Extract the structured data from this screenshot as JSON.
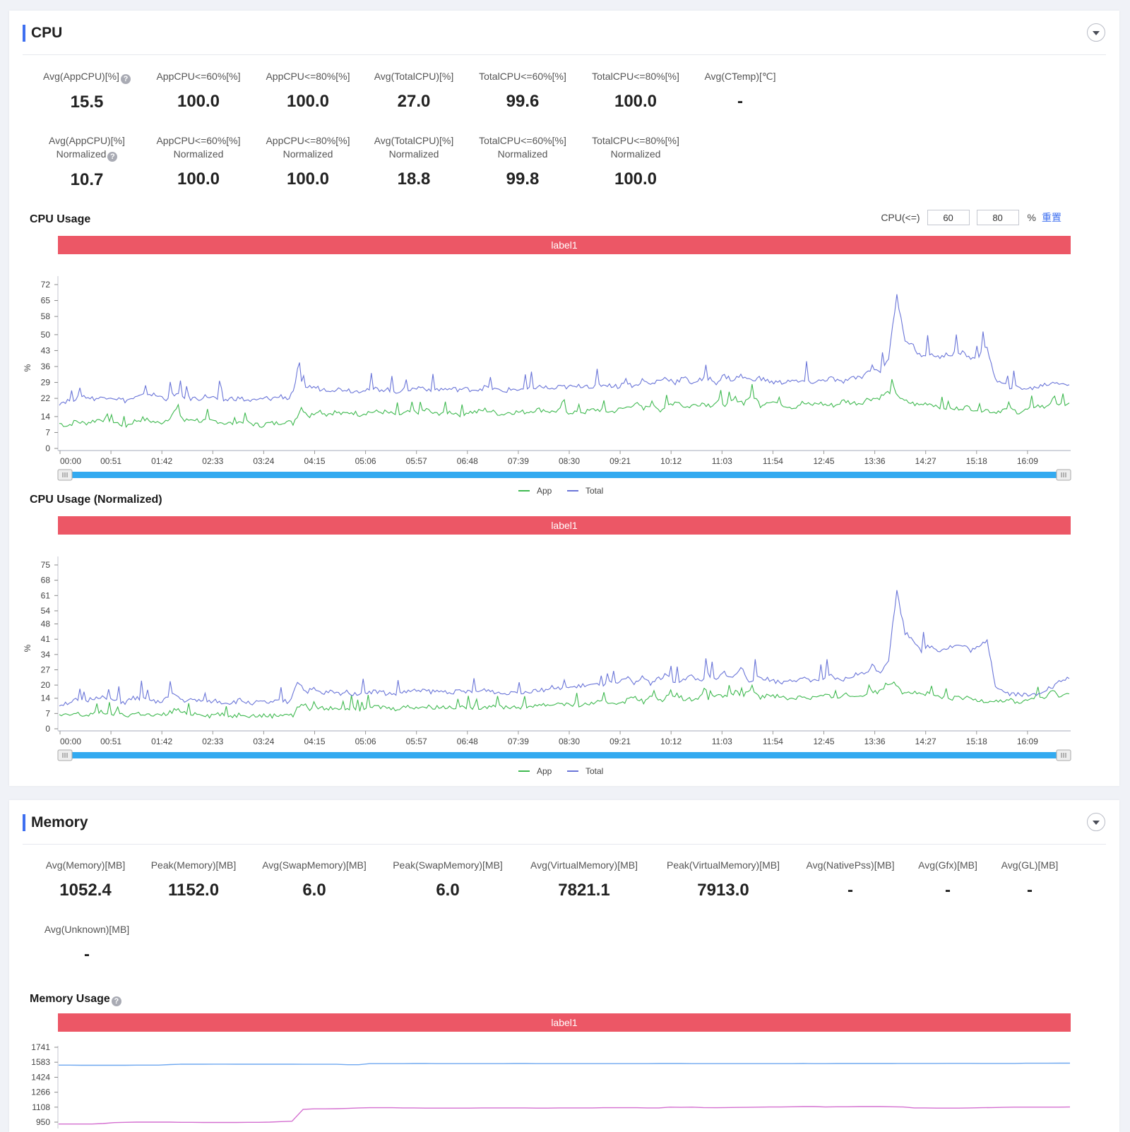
{
  "cpu": {
    "title": "CPU",
    "metrics_row1": [
      {
        "label": "Avg(AppCPU)[%]",
        "value": "15.5",
        "help": true
      },
      {
        "label": "AppCPU<=60%[%]",
        "value": "100.0"
      },
      {
        "label": "AppCPU<=80%[%]",
        "value": "100.0"
      },
      {
        "label": "Avg(TotalCPU)[%]",
        "value": "27.0"
      },
      {
        "label": "TotalCPU<=60%[%]",
        "value": "99.6"
      },
      {
        "label": "TotalCPU<=80%[%]",
        "value": "100.0"
      },
      {
        "label": "Avg(CTemp)[℃]",
        "value": "-"
      }
    ],
    "metrics_row2": [
      {
        "label": "Avg(AppCPU)[%]",
        "sub": "Normalized",
        "value": "10.7",
        "help": true
      },
      {
        "label": "AppCPU<=60%[%]",
        "sub": "Normalized",
        "value": "100.0"
      },
      {
        "label": "AppCPU<=80%[%]",
        "sub": "Normalized",
        "value": "100.0"
      },
      {
        "label": "Avg(TotalCPU)[%]",
        "sub": "Normalized",
        "value": "18.8"
      },
      {
        "label": "TotalCPU<=60%[%]",
        "sub": "Normalized",
        "value": "99.8"
      },
      {
        "label": "TotalCPU<=80%[%]",
        "sub": "Normalized",
        "value": "100.0"
      }
    ],
    "threshold": {
      "label": "CPU(<=)",
      "low": "60",
      "high": "80",
      "unit": "%",
      "reset": "重置"
    }
  },
  "memory": {
    "title": "Memory",
    "metrics_row1": [
      {
        "label": "Avg(Memory)[MB]",
        "value": "1052.4"
      },
      {
        "label": "Peak(Memory)[MB]",
        "value": "1152.0"
      },
      {
        "label": "Avg(SwapMemory)[MB]",
        "value": "6.0"
      },
      {
        "label": "Peak(SwapMemory)[MB]",
        "value": "6.0"
      },
      {
        "label": "Avg(VirtualMemory)[MB]",
        "value": "7821.1"
      },
      {
        "label": "Peak(VirtualMemory)[MB]",
        "value": "7913.0"
      },
      {
        "label": "Avg(NativePss)[MB]",
        "value": "-"
      },
      {
        "label": "Avg(Gfx)[MB]",
        "value": "-"
      },
      {
        "label": "Avg(GL)[MB]",
        "value": "-"
      }
    ],
    "metrics_row2": [
      {
        "label": "Avg(Unknown)[MB]",
        "value": "-"
      }
    ]
  },
  "colors": {
    "app": "#3fb950",
    "total": "#6a75d8",
    "label_bar": "#ec5766",
    "accent": "#3e6ff0",
    "slider": "#33aaf0",
    "mem_a": "#6fa8f0",
    "mem_b": "#d46fd0"
  },
  "chart_data": [
    {
      "type": "line",
      "title": "CPU Usage",
      "band_label": "label1",
      "ylabel": "%",
      "yticks": [
        0,
        7,
        14,
        22,
        29,
        36,
        43,
        50,
        58,
        65,
        72
      ],
      "ylim": [
        0,
        72
      ],
      "xticks": [
        "00:00",
        "00:51",
        "01:42",
        "02:33",
        "03:24",
        "04:15",
        "05:06",
        "05:57",
        "06:48",
        "07:39",
        "08:30",
        "09:21",
        "10:12",
        "11:03",
        "11:54",
        "12:45",
        "13:36",
        "14:27",
        "15:18",
        "16:09"
      ],
      "x_range_minutes": [
        0,
        1000
      ],
      "legend": [
        "App",
        "Total"
      ],
      "series": [
        {
          "name": "App",
          "values": [
            11,
            10,
            12,
            11,
            12,
            13,
            12,
            11,
            10,
            12,
            13,
            12,
            11,
            13,
            17,
            12,
            13,
            12,
            12,
            12,
            11,
            11,
            12,
            11,
            10,
            11,
            11,
            12,
            11,
            18,
            14,
            17,
            15,
            16,
            15,
            16,
            15,
            16,
            16,
            16,
            15,
            15,
            16,
            16,
            17,
            15,
            16,
            16,
            15,
            16,
            16,
            17,
            16,
            15,
            16,
            16,
            16,
            17,
            17,
            16,
            17,
            16,
            16,
            16,
            17,
            17,
            16,
            17,
            18,
            20,
            17,
            20,
            17,
            19,
            21,
            18,
            19,
            20,
            19,
            21,
            19,
            22,
            20,
            24,
            19,
            21,
            20,
            19,
            18,
            20,
            19,
            20,
            19,
            19,
            21,
            20,
            20,
            22,
            22,
            24,
            26,
            21,
            20,
            19,
            20,
            19,
            18,
            17,
            18,
            18,
            17,
            17,
            16,
            17,
            17,
            16,
            17,
            19,
            18,
            21,
            19,
            20
          ]
        },
        {
          "name": "Total",
          "values": [
            20,
            21,
            22,
            23,
            22,
            22,
            23,
            22,
            21,
            22,
            23,
            24,
            23,
            22,
            24,
            23,
            22,
            22,
            23,
            22,
            21,
            22,
            22,
            21,
            21,
            22,
            22,
            23,
            22,
            30,
            27,
            27,
            26,
            26,
            26,
            26,
            25,
            26,
            26,
            26,
            26,
            25,
            26,
            26,
            27,
            26,
            26,
            26,
            26,
            26,
            26,
            26,
            27,
            26,
            25,
            26,
            26,
            26,
            27,
            27,
            26,
            27,
            27,
            27,
            28,
            27,
            28,
            28,
            27,
            30,
            27,
            30,
            28,
            30,
            31,
            29,
            31,
            29,
            30,
            31,
            29,
            32,
            30,
            32,
            30,
            31,
            30,
            29,
            29,
            30,
            29,
            30,
            29,
            30,
            31,
            29,
            30,
            31,
            32,
            36,
            34,
            40,
            67,
            48,
            45,
            40,
            42,
            40,
            41,
            42,
            42,
            40,
            41,
            45,
            30,
            28,
            27,
            27,
            26,
            27,
            28,
            29,
            29,
            28
          ]
        }
      ]
    },
    {
      "type": "line",
      "title": "CPU Usage (Normalized)",
      "band_label": "label1",
      "ylabel": "%",
      "yticks": [
        0,
        7,
        14,
        20,
        27,
        34,
        41,
        48,
        54,
        61,
        68,
        75
      ],
      "ylim": [
        0,
        75
      ],
      "xticks": [
        "00:00",
        "00:51",
        "01:42",
        "02:33",
        "03:24",
        "04:15",
        "05:06",
        "05:57",
        "06:48",
        "07:39",
        "08:30",
        "09:21",
        "10:12",
        "11:03",
        "11:54",
        "12:45",
        "13:36",
        "14:27",
        "15:18",
        "16:09"
      ],
      "x_range_minutes": [
        0,
        1000
      ],
      "legend": [
        "App",
        "Total"
      ],
      "series": [
        {
          "name": "App",
          "values": [
            6,
            6,
            7,
            6,
            7,
            8,
            7,
            7,
            6,
            7,
            7,
            6,
            6,
            7,
            9,
            7,
            7,
            7,
            6,
            7,
            6,
            6,
            7,
            6,
            6,
            6,
            6,
            7,
            6,
            12,
            9,
            10,
            9,
            10,
            9,
            10,
            9,
            10,
            10,
            10,
            9,
            10,
            10,
            10,
            10,
            10,
            10,
            10,
            10,
            10,
            10,
            10,
            11,
            10,
            10,
            10,
            10,
            11,
            11,
            11,
            12,
            11,
            11,
            11,
            12,
            12,
            12,
            12,
            13,
            15,
            12,
            15,
            13,
            15,
            16,
            13,
            14,
            15,
            14,
            16,
            14,
            17,
            15,
            19,
            14,
            16,
            15,
            14,
            14,
            15,
            14,
            15,
            15,
            14,
            16,
            15,
            15,
            17,
            17,
            20,
            22,
            17,
            17,
            16,
            16,
            15,
            14,
            14,
            14,
            14,
            13,
            13,
            13,
            13,
            13,
            12,
            13,
            15,
            14,
            17,
            15,
            16
          ]
        },
        {
          "name": "Total",
          "values": [
            11,
            12,
            13,
            12,
            14,
            15,
            13,
            13,
            12,
            14,
            14,
            13,
            12,
            14,
            16,
            13,
            13,
            13,
            12,
            13,
            12,
            12,
            13,
            12,
            12,
            12,
            12,
            13,
            12,
            22,
            17,
            18,
            16,
            17,
            16,
            17,
            16,
            17,
            17,
            17,
            16,
            16,
            17,
            17,
            18,
            17,
            17,
            17,
            17,
            17,
            17,
            17,
            18,
            17,
            16,
            17,
            17,
            17,
            18,
            18,
            19,
            18,
            19,
            19,
            20,
            20,
            20,
            21,
            20,
            24,
            20,
            24,
            21,
            23,
            25,
            21,
            23,
            24,
            22,
            25,
            22,
            26,
            23,
            28,
            22,
            24,
            23,
            22,
            21,
            23,
            22,
            23,
            22,
            23,
            24,
            22,
            23,
            25,
            25,
            29,
            26,
            32,
            63,
            44,
            41,
            36,
            38,
            36,
            37,
            38,
            38,
            36,
            37,
            41,
            20,
            17,
            16,
            16,
            15,
            16,
            18,
            19,
            22,
            23
          ]
        }
      ]
    },
    {
      "type": "line",
      "title": "Memory Usage",
      "band_label": "label1",
      "yticks": [
        950,
        1108,
        1266,
        1424,
        1583,
        1741
      ],
      "ylim": [
        950,
        1741
      ],
      "series": [
        {
          "name": "mem_total",
          "values": [
            1552,
            1552,
            1551,
            1551,
            1551,
            1551,
            1551,
            1552,
            1552,
            1552,
            1558,
            1562,
            1562,
            1562,
            1563,
            1563,
            1562,
            1562,
            1562,
            1562,
            1562,
            1562,
            1561,
            1561,
            1561,
            1561,
            1557,
            1557,
            1568,
            1568,
            1568,
            1568,
            1569,
            1570,
            1568,
            1568,
            1568,
            1568,
            1568,
            1568,
            1568,
            1569,
            1569,
            1568,
            1568,
            1568,
            1568,
            1568,
            1568,
            1568,
            1568,
            1568,
            1568,
            1568,
            1569,
            1569,
            1569,
            1568,
            1568,
            1568,
            1568,
            1568,
            1568,
            1568,
            1568,
            1568,
            1568,
            1569,
            1568,
            1568,
            1569,
            1569,
            1569,
            1569,
            1569,
            1569,
            1570,
            1570,
            1570,
            1570,
            1571,
            1571,
            1571,
            1570,
            1570,
            1570,
            1570,
            1572,
            1572,
            1572,
            1573,
            1573
          ]
        },
        {
          "name": "mem_app",
          "values": [
            930,
            930,
            930,
            930,
            935,
            945,
            948,
            950,
            950,
            950,
            950,
            948,
            948,
            946,
            946,
            946,
            946,
            948,
            948,
            950,
            955,
            960,
            1085,
            1090,
            1090,
            1092,
            1095,
            1100,
            1102,
            1102,
            1102,
            1100,
            1100,
            1098,
            1098,
            1098,
            1098,
            1098,
            1100,
            1100,
            1100,
            1100,
            1100,
            1098,
            1098,
            1100,
            1100,
            1100,
            1100,
            1102,
            1102,
            1102,
            1102,
            1100,
            1100,
            1108,
            1106,
            1108,
            1104,
            1102,
            1104,
            1105,
            1106,
            1108,
            1110,
            1110,
            1112,
            1114,
            1114,
            1110,
            1112,
            1112,
            1114,
            1114,
            1114,
            1112,
            1110,
            1100,
            1100,
            1098,
            1098,
            1098,
            1100,
            1102,
            1104,
            1106,
            1108,
            1108,
            1108,
            1108,
            1108,
            1110
          ]
        }
      ]
    }
  ]
}
